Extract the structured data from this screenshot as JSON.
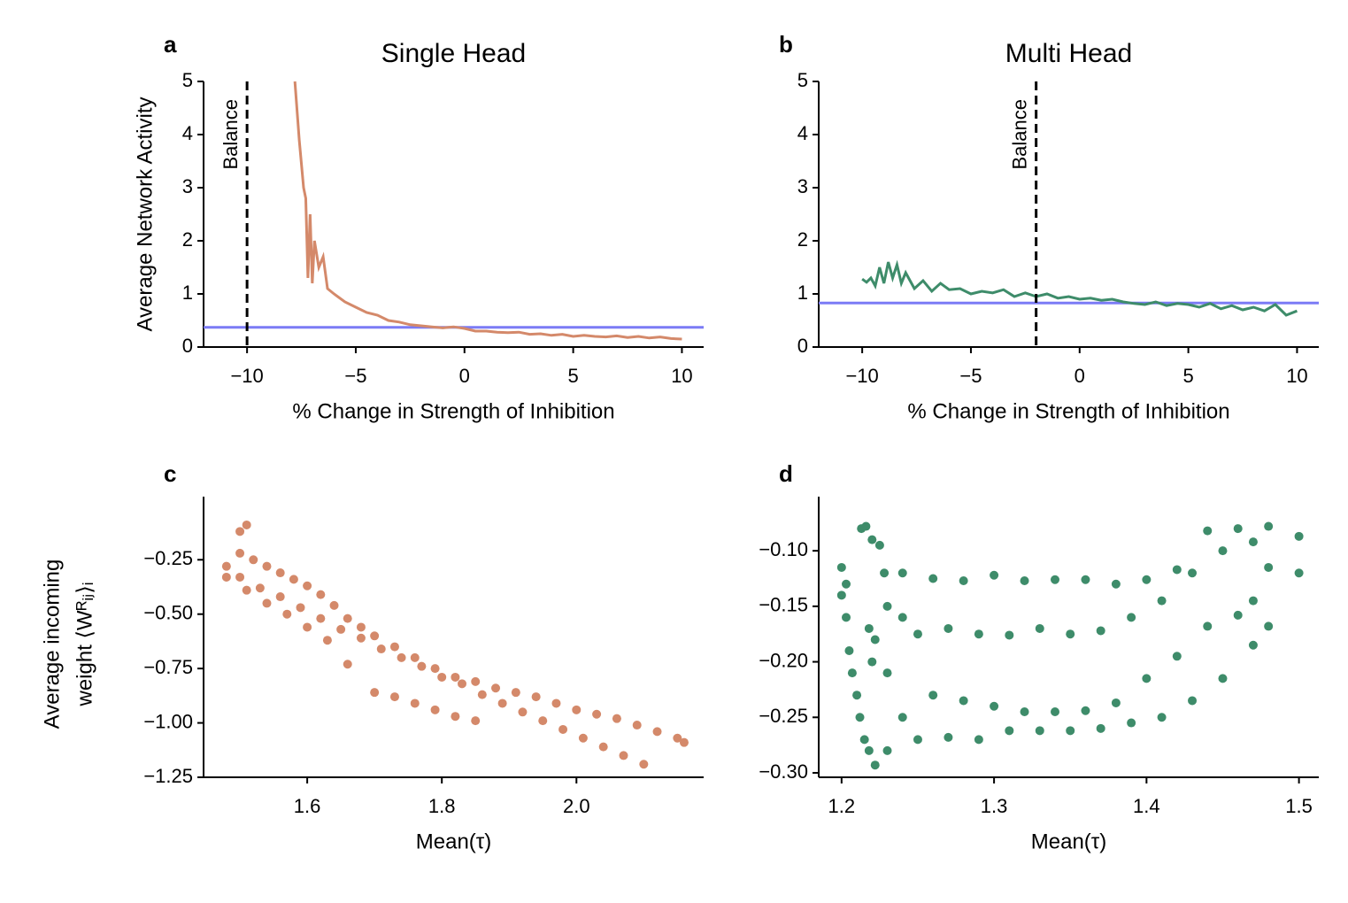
{
  "chart_data": [
    {
      "type": "line",
      "panel": "a",
      "title": "Single Head",
      "xlabel": "% Change in Strength of Inhibition",
      "ylabel": "Average Network Activity",
      "xlim": [
        -12,
        11
      ],
      "ylim": [
        0,
        5
      ],
      "xticks": [
        {
          "value": -10,
          "label": "−10"
        },
        {
          "value": -5,
          "label": "−5"
        },
        0,
        5,
        10
      ],
      "yticks": [
        0,
        1,
        2,
        3,
        4,
        5
      ],
      "vline": {
        "x": -10,
        "text": "Balance"
      },
      "hline": {
        "y": 0.37,
        "color": "#7b7bf5"
      },
      "x": [
        -7.8,
        -7.6,
        -7.4,
        -7.3,
        -7.2,
        -7.1,
        -7.0,
        -6.9,
        -6.7,
        -6.5,
        -6.3,
        -6.0,
        -5.5,
        -5.0,
        -4.5,
        -4.0,
        -3.5,
        -3.0,
        -2.5,
        -2.0,
        -1.5,
        -1.0,
        -0.5,
        0,
        0.5,
        1,
        1.5,
        2,
        2.5,
        3,
        3.5,
        4,
        4.5,
        5,
        5.5,
        6,
        6.5,
        7,
        7.5,
        8,
        8.5,
        9,
        9.5,
        10
      ],
      "series": [
        {
          "color": "#d4896a",
          "values": [
            5.0,
            3.9,
            3.0,
            2.8,
            1.3,
            2.5,
            1.2,
            2.0,
            1.5,
            1.7,
            1.1,
            1.0,
            0.85,
            0.75,
            0.65,
            0.6,
            0.5,
            0.47,
            0.42,
            0.4,
            0.38,
            0.36,
            0.38,
            0.35,
            0.3,
            0.3,
            0.28,
            0.27,
            0.28,
            0.24,
            0.25,
            0.22,
            0.24,
            0.2,
            0.22,
            0.2,
            0.19,
            0.21,
            0.18,
            0.2,
            0.17,
            0.19,
            0.16,
            0.15
          ]
        }
      ]
    },
    {
      "type": "line",
      "panel": "b",
      "title": "Multi Head",
      "xlabel": "% Change in Strength of Inhibition",
      "xlim": [
        -12,
        11
      ],
      "ylim": [
        0,
        5
      ],
      "xticks": [
        {
          "value": -10,
          "label": "−10"
        },
        {
          "value": -5,
          "label": "−5"
        },
        0,
        5,
        10
      ],
      "yticks": [
        0,
        1,
        2,
        3,
        4,
        5
      ],
      "vline": {
        "x": -2,
        "text": "Balance"
      },
      "hline": {
        "y": 0.83,
        "color": "#7b7bf5"
      },
      "x": [
        -10,
        -9.8,
        -9.6,
        -9.4,
        -9.2,
        -9.0,
        -8.8,
        -8.6,
        -8.4,
        -8.2,
        -8.0,
        -7.6,
        -7.2,
        -6.8,
        -6.4,
        -6.0,
        -5.5,
        -5.0,
        -4.5,
        -4.0,
        -3.5,
        -3.0,
        -2.5,
        -2.0,
        -1.5,
        -1.0,
        -0.5,
        0,
        0.5,
        1,
        1.5,
        2,
        2.5,
        3,
        3.5,
        4,
        4.5,
        5,
        5.5,
        6,
        6.5,
        7,
        7.5,
        8,
        8.5,
        9,
        9.5,
        10
      ],
      "series": [
        {
          "color": "#3e8c6a",
          "values": [
            1.28,
            1.22,
            1.3,
            1.15,
            1.5,
            1.2,
            1.6,
            1.3,
            1.55,
            1.2,
            1.4,
            1.1,
            1.25,
            1.05,
            1.2,
            1.08,
            1.1,
            1.0,
            1.05,
            1.02,
            1.08,
            0.95,
            1.02,
            0.95,
            1.0,
            0.92,
            0.95,
            0.9,
            0.92,
            0.88,
            0.9,
            0.85,
            0.82,
            0.8,
            0.85,
            0.78,
            0.82,
            0.8,
            0.75,
            0.82,
            0.72,
            0.78,
            0.7,
            0.75,
            0.68,
            0.8,
            0.6,
            0.68
          ]
        }
      ]
    },
    {
      "type": "scatter",
      "panel": "c",
      "xlabel": "Mean(τ)",
      "ylabel": [
        "Average incoming",
        "weight ⟨Wᴿᵢⱼ⟩ᵢ"
      ],
      "xlim": [
        1.446,
        2.189
      ],
      "ylim": [
        -1.25,
        -0.025
      ],
      "xticks": [
        1.6,
        1.8,
        {
          "value": 2,
          "label": "2.0"
        }
      ],
      "yticks": [
        {
          "value": -1.25,
          "label": "−1.25"
        },
        {
          "value": -1,
          "label": "−1.00"
        },
        {
          "value": -0.75,
          "label": "−0.75"
        },
        {
          "value": -0.5,
          "label": "−0.50"
        },
        {
          "value": -0.25,
          "label": "−0.25"
        }
      ],
      "color": "#d4896a",
      "x": [
        1.5,
        1.52,
        1.54,
        1.56,
        1.58,
        1.6,
        1.62,
        1.64,
        1.66,
        1.68,
        1.7,
        1.73,
        1.76,
        1.79,
        1.82,
        1.85,
        1.88,
        1.91,
        1.94,
        1.97,
        2.0,
        2.03,
        2.06,
        2.09,
        2.12,
        2.15,
        2.16,
        1.48,
        1.5,
        1.53,
        1.56,
        1.59,
        1.62,
        1.65,
        1.68,
        1.71,
        1.74,
        1.77,
        1.8,
        1.83,
        1.86,
        1.89,
        1.92,
        1.95,
        1.98,
        2.01,
        2.04,
        2.07,
        2.1,
        1.48,
        1.51,
        1.54,
        1.57,
        1.6,
        1.63,
        1.66,
        1.7,
        1.73,
        1.76,
        1.79,
        1.82,
        1.85,
        1.5,
        1.51
      ],
      "y": [
        -0.22,
        -0.25,
        -0.28,
        -0.31,
        -0.34,
        -0.37,
        -0.41,
        -0.46,
        -0.52,
        -0.56,
        -0.6,
        -0.65,
        -0.7,
        -0.75,
        -0.79,
        -0.81,
        -0.84,
        -0.86,
        -0.88,
        -0.91,
        -0.94,
        -0.96,
        -0.98,
        -1.01,
        -1.04,
        -1.07,
        -1.09,
        -0.28,
        -0.33,
        -0.38,
        -0.42,
        -0.47,
        -0.52,
        -0.57,
        -0.61,
        -0.66,
        -0.7,
        -0.74,
        -0.79,
        -0.82,
        -0.87,
        -0.91,
        -0.95,
        -0.99,
        -1.03,
        -1.07,
        -1.11,
        -1.15,
        -1.19,
        -0.33,
        -0.39,
        -0.45,
        -0.5,
        -0.56,
        -0.62,
        -0.73,
        -0.86,
        -0.88,
        -0.91,
        -0.94,
        -0.97,
        -0.99,
        -0.12,
        -0.09
      ]
    },
    {
      "type": "scatter",
      "panel": "d",
      "xlabel": "Mean(τ)",
      "xlim": [
        1.185,
        1.513
      ],
      "ylim": [
        -0.304,
        -0.064
      ],
      "xticks": [
        1.2,
        1.3,
        1.4,
        1.5
      ],
      "yticks": [
        {
          "value": -0.3,
          "label": "−0.30"
        },
        {
          "value": -0.25,
          "label": "−0.25"
        },
        {
          "value": -0.2,
          "label": "−0.20"
        },
        {
          "value": -0.15,
          "label": "−0.15"
        },
        {
          "value": -0.1,
          "label": "−0.10"
        }
      ],
      "color": "#3e8c6a",
      "x": [
        1.24,
        1.26,
        1.28,
        1.3,
        1.32,
        1.34,
        1.36,
        1.38,
        1.4,
        1.42,
        1.44,
        1.46,
        1.48,
        1.5,
        1.23,
        1.24,
        1.25,
        1.27,
        1.29,
        1.31,
        1.33,
        1.35,
        1.37,
        1.39,
        1.41,
        1.43,
        1.45,
        1.47,
        1.48,
        1.5,
        1.23,
        1.24,
        1.26,
        1.28,
        1.3,
        1.32,
        1.34,
        1.36,
        1.38,
        1.4,
        1.42,
        1.44,
        1.46,
        1.47,
        1.222,
        1.23,
        1.25,
        1.27,
        1.29,
        1.31,
        1.33,
        1.35,
        1.37,
        1.39,
        1.41,
        1.43,
        1.45,
        1.47,
        1.48,
        1.2,
        1.2,
        1.203,
        1.205,
        1.207,
        1.21,
        1.212,
        1.215,
        1.218,
        1.213,
        1.216,
        1.22,
        1.225,
        1.228,
        1.218,
        1.22,
        1.222,
        1.203
      ],
      "y": [
        -0.12,
        -0.125,
        -0.127,
        -0.122,
        -0.127,
        -0.126,
        -0.126,
        -0.13,
        -0.126,
        -0.117,
        -0.082,
        -0.08,
        -0.078,
        -0.087,
        -0.15,
        -0.16,
        -0.175,
        -0.17,
        -0.175,
        -0.176,
        -0.17,
        -0.175,
        -0.172,
        -0.16,
        -0.145,
        -0.12,
        -0.1,
        -0.092,
        -0.115,
        -0.12,
        -0.21,
        -0.25,
        -0.23,
        -0.235,
        -0.24,
        -0.245,
        -0.245,
        -0.244,
        -0.237,
        -0.215,
        -0.195,
        -0.168,
        -0.158,
        -0.145,
        -0.293,
        -0.28,
        -0.27,
        -0.268,
        -0.27,
        -0.262,
        -0.262,
        -0.262,
        -0.26,
        -0.255,
        -0.25,
        -0.235,
        -0.215,
        -0.185,
        -0.168,
        -0.115,
        -0.14,
        -0.16,
        -0.19,
        -0.21,
        -0.23,
        -0.25,
        -0.27,
        -0.28,
        -0.08,
        -0.078,
        -0.09,
        -0.095,
        -0.12,
        -0.17,
        -0.2,
        -0.18,
        -0.13
      ]
    }
  ]
}
